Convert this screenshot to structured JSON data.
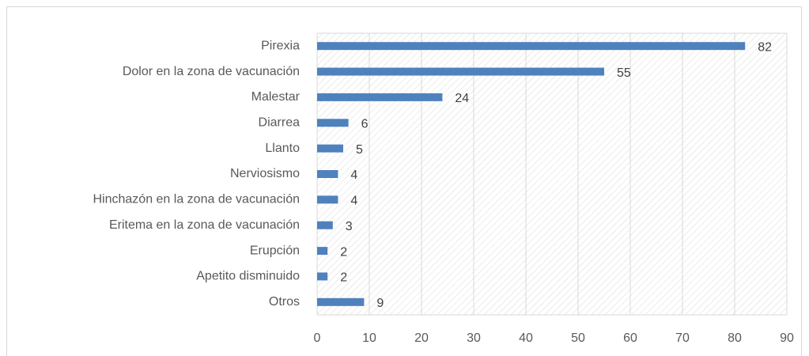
{
  "chart_data": {
    "type": "hbar",
    "categories": [
      "Pirexia",
      "Dolor en la zona de vacunación",
      "Malestar",
      "Diarrea",
      "Llanto",
      "Nerviosismo",
      "Hinchazón en la zona de vacunación",
      "Eritema en la zona de vacunación",
      "Erupción",
      "Apetito disminuido",
      "Otros"
    ],
    "values": [
      82,
      55,
      24,
      6,
      5,
      4,
      4,
      3,
      2,
      2,
      9
    ],
    "color": "#4f81bd",
    "xlim": [
      0,
      90
    ],
    "xticks": [
      0,
      10,
      20,
      30,
      40,
      50,
      60,
      70,
      80,
      90
    ],
    "grid": true
  }
}
